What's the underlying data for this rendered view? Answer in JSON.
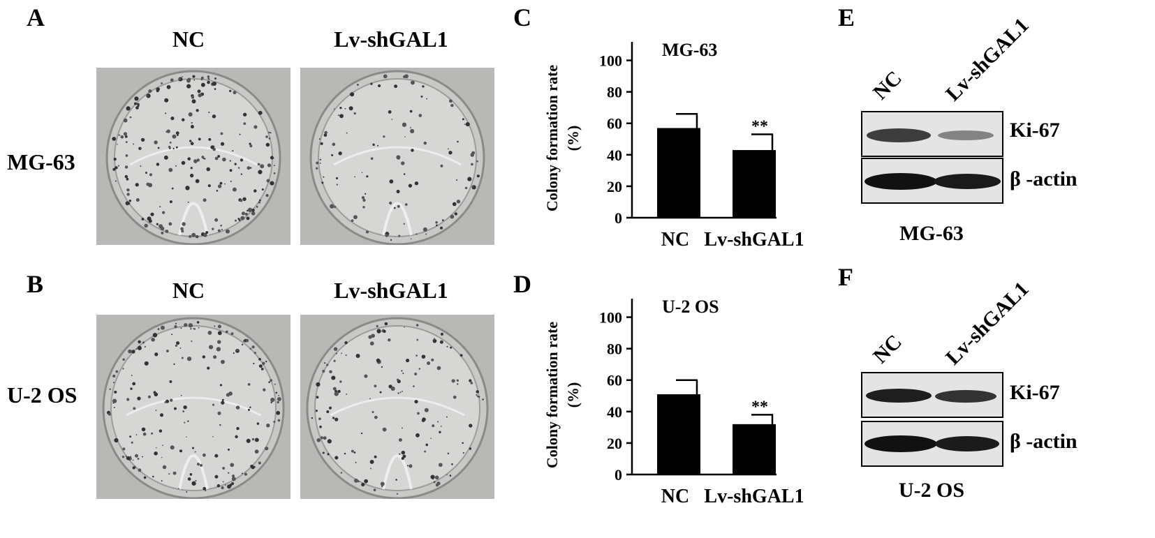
{
  "panels": {
    "A": "A",
    "B": "B",
    "C": "C",
    "D": "D",
    "E": "E",
    "F": "F"
  },
  "plates": {
    "col_labels": [
      "NC",
      "Lv-shGAL1"
    ],
    "rows": [
      {
        "label": "MG-63",
        "panel": "A"
      },
      {
        "label": "U-2 OS",
        "panel": "B"
      }
    ]
  },
  "chart_data": [
    {
      "type": "bar",
      "panel": "C",
      "title": "MG-63",
      "ylabel_line1": "Colony formation rate",
      "ylabel_line2": "(%)",
      "categories": [
        "NC",
        "Lv-shGAL1"
      ],
      "values": [
        57,
        43
      ],
      "errors": [
        9,
        10
      ],
      "annotations": [
        "",
        "**"
      ],
      "yticks": [
        "0",
        "20",
        "40",
        "60",
        "80",
        "100"
      ],
      "ylim": [
        0,
        110
      ]
    },
    {
      "type": "bar",
      "panel": "D",
      "title": "U-2 OS",
      "ylabel_line1": "Colony formation rate",
      "ylabel_line2": "(%)",
      "categories": [
        "NC",
        "Lv-shGAL1"
      ],
      "values": [
        51,
        32
      ],
      "errors": [
        9,
        6
      ],
      "annotations": [
        "",
        "**"
      ],
      "yticks": [
        "0",
        "20",
        "40",
        "60",
        "80",
        "100"
      ],
      "ylim": [
        0,
        110
      ]
    }
  ],
  "blots": [
    {
      "panel": "E",
      "lanes": [
        "NC",
        "Lv-shGAL1"
      ],
      "bands": [
        "Ki-67",
        "β -actin"
      ],
      "cell_line": "MG-63"
    },
    {
      "panel": "F",
      "lanes": [
        "NC",
        "Lv-shGAL1"
      ],
      "bands": [
        "Ki-67",
        "β -actin"
      ],
      "cell_line": "U-2 OS"
    }
  ]
}
